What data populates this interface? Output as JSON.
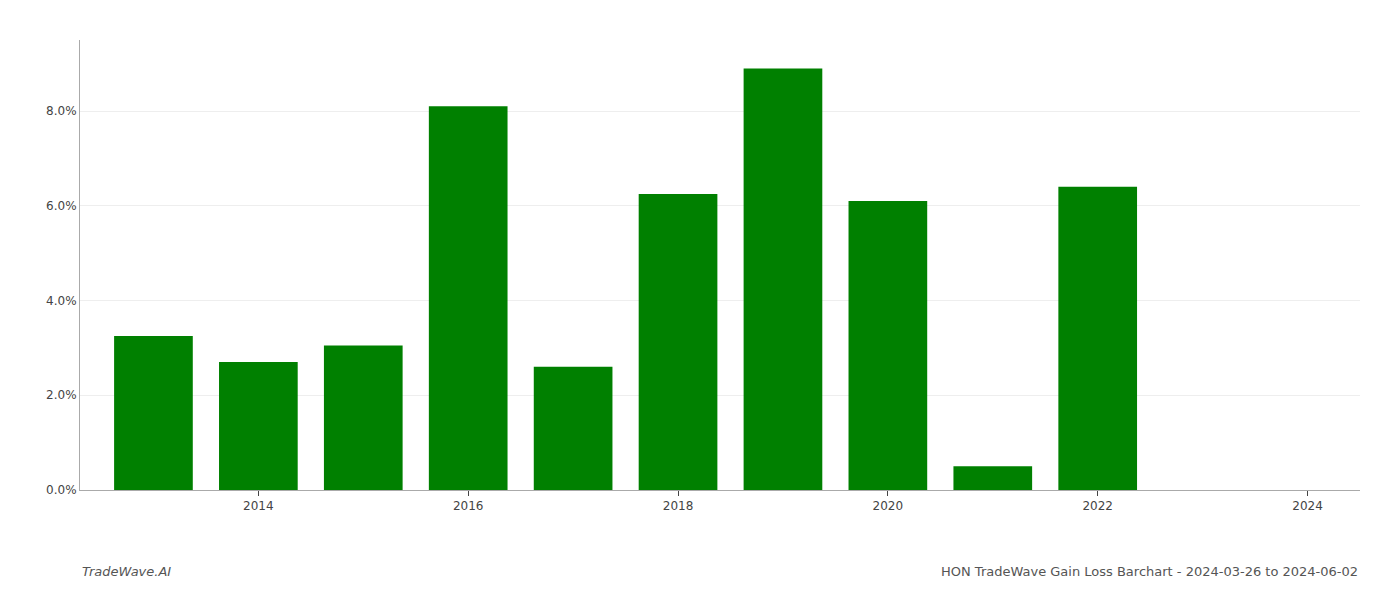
{
  "chart_data": {
    "type": "bar",
    "x": [
      2013,
      2014,
      2015,
      2016,
      2017,
      2018,
      2019,
      2020,
      2021,
      2022,
      2023
    ],
    "values": [
      0.0325,
      0.027,
      0.0305,
      0.081,
      0.026,
      0.0625,
      0.089,
      0.061,
      0.005,
      0.064,
      0.0
    ],
    "color": "#008000",
    "xlim": [
      2012.3,
      2024.5
    ],
    "xticks": [
      2014,
      2016,
      2018,
      2020,
      2022,
      2024
    ],
    "ylim": [
      0,
      0.095
    ],
    "yticks": [
      {
        "value": 0.0,
        "label": "0.0%"
      },
      {
        "value": 0.02,
        "label": "2.0%"
      },
      {
        "value": 0.04,
        "label": "4.0%"
      },
      {
        "value": 0.06,
        "label": "6.0%"
      },
      {
        "value": 0.08,
        "label": "8.0%"
      }
    ],
    "grid": true,
    "annotations": [
      "TradeWave.AI",
      "HON TradeWave Gain Loss Barchart - 2024-03-26 to 2024-06-02"
    ]
  }
}
